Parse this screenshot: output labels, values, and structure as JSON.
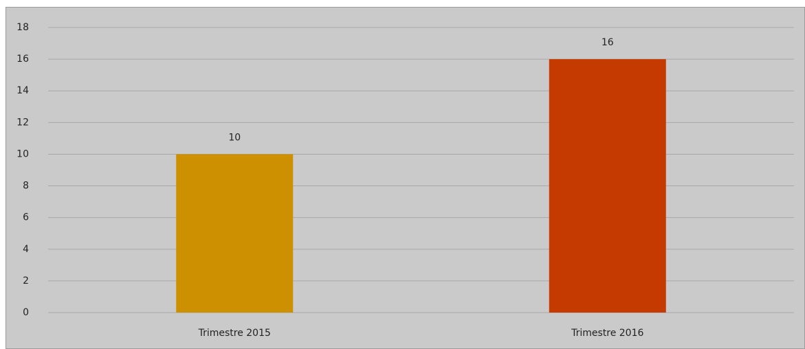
{
  "chart_data": {
    "type": "bar",
    "categories": [
      "Trimestre 2015",
      "Trimestre 2016"
    ],
    "values": [
      10,
      16
    ],
    "colors": [
      "#cc9000",
      "#c43a00"
    ],
    "ylim": [
      0,
      18
    ],
    "yticks": [
      0,
      2,
      4,
      6,
      8,
      10,
      12,
      14,
      16,
      18
    ],
    "grid": true,
    "data_labels": true
  }
}
